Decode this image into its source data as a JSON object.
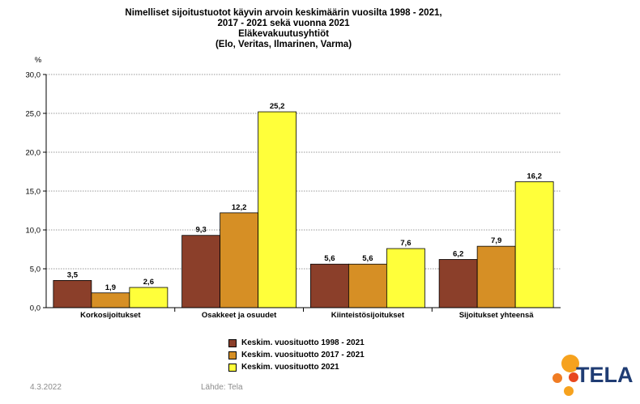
{
  "title": {
    "line1": "Nimelliset sijoitustuotot käyvin arvoin keskimäärin vuosilta 1998 - 2021,",
    "line2": "2017 - 2021 sekä vuonna 2021",
    "line3": "Eläkevakuutusyhtiöt",
    "line4": "(Elo, Veritas, Ilmarinen, Varma)"
  },
  "footer": {
    "date": "4.3.2022",
    "source": "Lähde: Tela"
  },
  "logo": {
    "text": "TELA"
  },
  "colors": {
    "series1": "#8b3f2a",
    "series2": "#d68f25",
    "series3": "#ffff3a"
  },
  "chart_data": {
    "type": "bar",
    "ylabel": "%",
    "ylim": [
      0,
      30
    ],
    "yticks": [
      "0,0",
      "5,0",
      "10,0",
      "15,0",
      "20,0",
      "25,0",
      "30,0"
    ],
    "grid": true,
    "legend_position": "bottom",
    "categories": [
      "Korkosijoitukset",
      "Osakkeet ja osuudet",
      "Kiinteistösijoitukset",
      "Sijoitukset yhteensä"
    ],
    "series": [
      {
        "name": "Keskim. vuosituotto 1998 - 2021",
        "values": [
          3.5,
          9.3,
          5.6,
          6.2
        ],
        "labels": [
          "3,5",
          "9,3",
          "5,6",
          "6,2"
        ],
        "color": "#8b3f2a"
      },
      {
        "name": "Keskim. vuosituotto 2017 - 2021",
        "values": [
          1.9,
          12.2,
          5.6,
          7.9
        ],
        "labels": [
          "1,9",
          "12,2",
          "5,6",
          "7,9"
        ],
        "color": "#d68f25"
      },
      {
        "name": "Keskim. vuosituotto 2021",
        "values": [
          2.6,
          25.2,
          7.6,
          16.2
        ],
        "labels": [
          "2,6",
          "25,2",
          "7,6",
          "16,2"
        ],
        "color": "#ffff3a"
      }
    ]
  }
}
